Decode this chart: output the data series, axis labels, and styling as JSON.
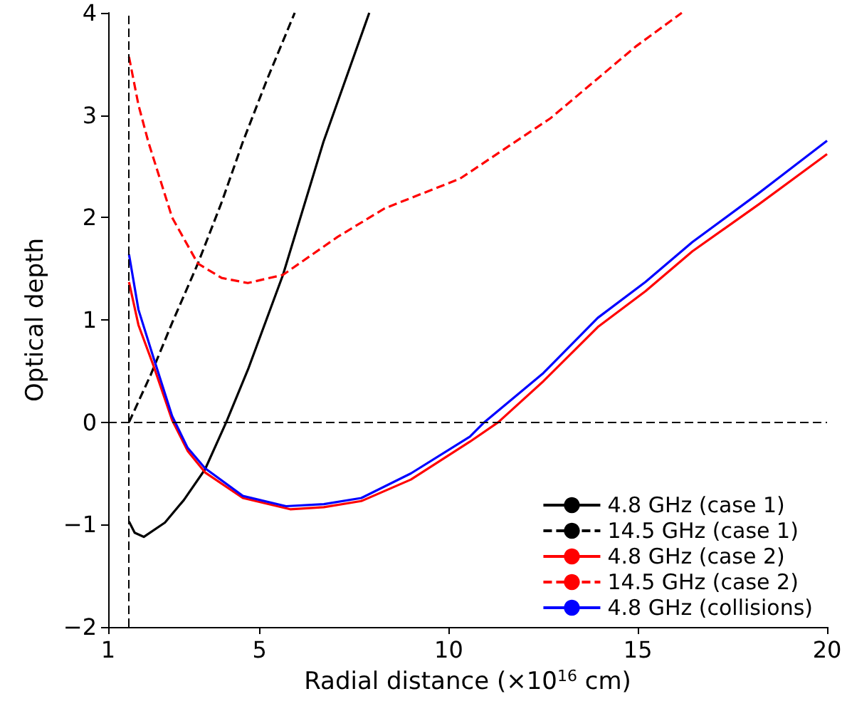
{
  "chart_data": {
    "type": "line",
    "xlabel": "Radial distance (×10$^{16}$ cm)",
    "ylabel": "Optical depth",
    "xlim": [
      1,
      20
    ],
    "ylim": [
      -2,
      4
    ],
    "xticks": [
      1,
      5,
      10,
      15,
      20
    ],
    "yticks": [
      -2,
      -1,
      0,
      1,
      2,
      3,
      4
    ],
    "grid": false,
    "legend": "bottom right",
    "marker": "none",
    "ref_lines": [
      {
        "axis": "x",
        "value": 1.55,
        "color": "#000000",
        "line_style": "dashed"
      },
      {
        "axis": "y",
        "value": 0,
        "color": "#000000",
        "line_style": "dashed"
      }
    ],
    "series": [
      {
        "name": "4.8 GHz (case 1)",
        "color": "#000000",
        "line_style": "solid",
        "x": [
          1.55,
          1.7,
          1.94,
          2.5,
          3.0,
          3.56,
          4.12,
          4.7,
          5.62,
          6.69,
          7.9
        ],
        "values": [
          -0.97,
          -1.08,
          -1.12,
          -0.98,
          -0.76,
          -0.46,
          0,
          0.52,
          1.44,
          2.74,
          4
        ]
      },
      {
        "name": "14.5 GHz (case 1)",
        "color": "#000000",
        "line_style": "dashed",
        "x": [
          1.55,
          2.12,
          2.7,
          3.37,
          4.0,
          4.56,
          5.2,
          5.93
        ],
        "values": [
          0,
          0.46,
          0.98,
          1.55,
          2.15,
          2.74,
          3.35,
          4
        ]
      },
      {
        "name": "4.8 GHz (case 2)",
        "color": "#ff0000",
        "line_style": "solid",
        "x": [
          1.55,
          1.8,
          2.19,
          2.69,
          3.1,
          3.56,
          4.56,
          5.81,
          6.7,
          7.69,
          9.0,
          10.56,
          11.31,
          12.5,
          13.94,
          15.2,
          16.44,
          18.2,
          20
        ],
        "values": [
          1.37,
          0.95,
          0.56,
          0.02,
          -0.28,
          -0.49,
          -0.74,
          -0.85,
          -0.83,
          -0.77,
          -0.56,
          -0.19,
          0,
          0.4,
          0.93,
          1.28,
          1.67,
          2.13,
          2.62
        ]
      },
      {
        "name": "14.5 GHz (case 2)",
        "color": "#ff0000",
        "line_style": "dashed",
        "x": [
          1.55,
          1.8,
          2.06,
          2.69,
          3.37,
          4.0,
          4.69,
          5.62,
          7.06,
          8.31,
          10.3,
          12.69,
          14.94,
          16.16
        ],
        "values": [
          3.57,
          3.1,
          2.74,
          2.0,
          1.55,
          1.41,
          1.36,
          1.44,
          1.81,
          2.09,
          2.38,
          2.97,
          3.67,
          4
        ]
      },
      {
        "name": "4.8 GHz (collisions)",
        "color": "#0000ff",
        "line_style": "solid",
        "x": [
          1.55,
          1.8,
          2.19,
          2.69,
          3.1,
          3.56,
          4.56,
          5.7,
          6.7,
          7.69,
          9.0,
          10.56,
          10.94,
          12.5,
          13.94,
          15.2,
          16.44,
          18.2,
          20
        ],
        "values": [
          1.64,
          1.1,
          0.64,
          0.06,
          -0.25,
          -0.45,
          -0.72,
          -0.82,
          -0.8,
          -0.74,
          -0.5,
          -0.14,
          0,
          0.48,
          1.02,
          1.37,
          1.76,
          2.24,
          2.75
        ]
      }
    ]
  }
}
